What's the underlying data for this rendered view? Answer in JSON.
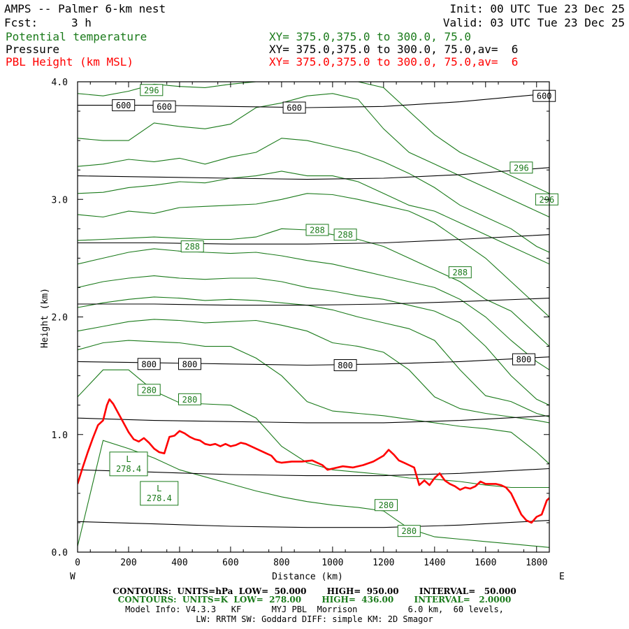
{
  "header": {
    "title": "AMPS -- Palmer 6-km nest",
    "fcst_label": "Fcst:",
    "fcst_value": "3 h",
    "init": "Init: 00 UTC Tue 23 Dec 25",
    "valid": "Valid: 03 UTC Tue 23 Dec 25",
    "fields": [
      {
        "name": "Potential temperature",
        "xy": "XY= 375.0,375.0 to 300.0, 75.0",
        "color": "#1a7a1a"
      },
      {
        "name": "Pressure",
        "xy": "XY= 375.0,375.0 to 300.0, 75.0,av=  6",
        "color": "#000000"
      },
      {
        "name": "PBL Height (km MSL)",
        "xy": "XY= 375.0,375.0 to 300.0, 75.0,av=  6",
        "color": "#ff0000"
      }
    ]
  },
  "chart_data": {
    "type": "line",
    "title": "AMPS -- Palmer 6-km nest",
    "xlabel": "Distance (km)",
    "ylabel": "Height (km)",
    "xlim": [
      0,
      1850
    ],
    "ylim": [
      0,
      4
    ],
    "x_ticks": [
      "0",
      "200",
      "400",
      "600",
      "800",
      "1000",
      "1200",
      "1400",
      "1600",
      "1800"
    ],
    "x_tick_values": [
      0,
      200,
      400,
      600,
      800,
      1000,
      1200,
      1400,
      1600,
      1800
    ],
    "y_ticks": [
      "0.0",
      "1.0",
      "2.0",
      "3.0",
      "4.0"
    ],
    "y_tick_values": [
      0,
      1,
      2,
      3,
      4
    ],
    "west_label": "W",
    "east_label": "E",
    "pbl_height": {
      "name": "PBL Height (km MSL)",
      "color": "#ff0000",
      "x": [
        0,
        20,
        40,
        60,
        80,
        100,
        115,
        125,
        140,
        160,
        180,
        200,
        220,
        240,
        260,
        280,
        300,
        320,
        340,
        360,
        380,
        400,
        420,
        440,
        460,
        480,
        500,
        520,
        540,
        560,
        580,
        600,
        620,
        640,
        660,
        680,
        700,
        720,
        740,
        760,
        780,
        800,
        840,
        880,
        920,
        960,
        980,
        1000,
        1040,
        1080,
        1120,
        1160,
        1200,
        1220,
        1240,
        1260,
        1280,
        1300,
        1320,
        1340,
        1360,
        1380,
        1400,
        1420,
        1440,
        1460,
        1480,
        1500,
        1520,
        1540,
        1560,
        1580,
        1600,
        1620,
        1640,
        1660,
        1680,
        1700,
        1720,
        1740,
        1760,
        1780,
        1800,
        1820,
        1840,
        1850
      ],
      "y": [
        0.58,
        0.72,
        0.85,
        0.97,
        1.08,
        1.12,
        1.25,
        1.3,
        1.26,
        1.18,
        1.1,
        1.02,
        0.96,
        0.94,
        0.97,
        0.93,
        0.88,
        0.85,
        0.84,
        0.98,
        0.99,
        1.03,
        1.01,
        0.98,
        0.96,
        0.95,
        0.92,
        0.91,
        0.92,
        0.9,
        0.92,
        0.9,
        0.91,
        0.93,
        0.92,
        0.9,
        0.88,
        0.86,
        0.84,
        0.82,
        0.77,
        0.76,
        0.77,
        0.77,
        0.78,
        0.74,
        0.7,
        0.71,
        0.73,
        0.72,
        0.74,
        0.77,
        0.82,
        0.87,
        0.83,
        0.78,
        0.76,
        0.74,
        0.72,
        0.57,
        0.61,
        0.57,
        0.63,
        0.67,
        0.61,
        0.58,
        0.56,
        0.53,
        0.55,
        0.54,
        0.56,
        0.6,
        0.58,
        0.58,
        0.58,
        0.57,
        0.55,
        0.5,
        0.41,
        0.32,
        0.27,
        0.25,
        0.3,
        0.32,
        0.44,
        0.46
      ]
    },
    "pressure": {
      "name": "Pressure",
      "units": "hPa",
      "color": "#000000",
      "x": [
        0,
        300,
        600,
        900,
        1200,
        1500,
        1850
      ],
      "levels": [
        {
          "label": "",
          "y": [
            0.26,
            0.24,
            0.22,
            0.21,
            0.21,
            0.23,
            0.27
          ]
        },
        {
          "label": "",
          "y": [
            0.7,
            0.68,
            0.66,
            0.65,
            0.65,
            0.67,
            0.71
          ]
        },
        {
          "label": "",
          "y": [
            1.14,
            1.12,
            1.11,
            1.1,
            1.1,
            1.12,
            1.16
          ]
        },
        {
          "label": "800",
          "y": [
            1.62,
            1.61,
            1.6,
            1.59,
            1.6,
            1.62,
            1.66
          ]
        },
        {
          "label": "",
          "y": [
            2.11,
            2.11,
            2.1,
            2.1,
            2.11,
            2.13,
            2.16
          ]
        },
        {
          "label": "",
          "y": [
            2.63,
            2.63,
            2.62,
            2.62,
            2.63,
            2.66,
            2.7
          ]
        },
        {
          "label": "",
          "y": [
            3.2,
            3.19,
            3.18,
            3.17,
            3.18,
            3.21,
            3.27
          ]
        },
        {
          "label": "600",
          "y": [
            3.8,
            3.8,
            3.79,
            3.78,
            3.79,
            3.83,
            3.9
          ]
        }
      ],
      "contour_labels": [
        {
          "text": "800",
          "x": 280,
          "y": 1.6
        },
        {
          "text": "800",
          "x": 440,
          "y": 1.6
        },
        {
          "text": "800",
          "x": 1050,
          "y": 1.59
        },
        {
          "text": "800",
          "x": 1750,
          "y": 1.64
        },
        {
          "text": "600",
          "x": 180,
          "y": 3.8
        },
        {
          "text": "600",
          "x": 340,
          "y": 3.79
        },
        {
          "text": "600",
          "x": 850,
          "y": 3.78
        },
        {
          "text": "600",
          "x": 1830,
          "y": 3.88
        }
      ]
    },
    "potential_temperature": {
      "name": "Potential temperature",
      "units": "K",
      "color": "#1a7a1a",
      "interval": 2,
      "x": [
        0,
        100,
        200,
        300,
        400,
        500,
        600,
        700,
        800,
        900,
        1000,
        1100,
        1200,
        1300,
        1400,
        1500,
        1600,
        1700,
        1800,
        1850
      ],
      "isentropes": [
        [
          0.05,
          0.95,
          0.88,
          0.8,
          0.7,
          0.64,
          0.58,
          0.52,
          0.47,
          0.43,
          0.4,
          0.38,
          0.35,
          0.2,
          0.13,
          0.11,
          0.09,
          0.07,
          0.05,
          0.04
        ],
        [
          1.32,
          1.55,
          1.55,
          1.37,
          1.27,
          1.26,
          1.25,
          1.14,
          0.9,
          0.76,
          0.7,
          0.68,
          0.66,
          0.63,
          0.62,
          0.6,
          0.57,
          0.55,
          0.55,
          0.55
        ],
        [
          1.72,
          1.78,
          1.8,
          1.79,
          1.78,
          1.75,
          1.75,
          1.65,
          1.5,
          1.28,
          1.2,
          1.18,
          1.16,
          1.13,
          1.1,
          1.07,
          1.05,
          1.02,
          0.85,
          0.75
        ],
        [
          1.88,
          1.92,
          1.96,
          1.98,
          1.97,
          1.95,
          1.96,
          1.97,
          1.93,
          1.88,
          1.78,
          1.75,
          1.7,
          1.55,
          1.32,
          1.22,
          1.18,
          1.15,
          1.12,
          1.1
        ],
        [
          2.08,
          2.12,
          2.15,
          2.17,
          2.16,
          2.14,
          2.15,
          2.14,
          2.12,
          2.1,
          2.06,
          2.0,
          1.95,
          1.9,
          1.8,
          1.55,
          1.33,
          1.28,
          1.18,
          1.15
        ],
        [
          2.25,
          2.3,
          2.33,
          2.35,
          2.33,
          2.32,
          2.33,
          2.33,
          2.3,
          2.25,
          2.22,
          2.18,
          2.15,
          2.1,
          2.05,
          1.95,
          1.75,
          1.5,
          1.3,
          1.25
        ],
        [
          2.45,
          2.5,
          2.55,
          2.58,
          2.56,
          2.55,
          2.54,
          2.55,
          2.52,
          2.48,
          2.45,
          2.4,
          2.35,
          2.3,
          2.25,
          2.15,
          2.0,
          1.8,
          1.62,
          1.55
        ],
        [
          2.65,
          2.66,
          2.67,
          2.68,
          2.67,
          2.66,
          2.66,
          2.68,
          2.75,
          2.74,
          2.7,
          2.66,
          2.6,
          2.5,
          2.4,
          2.3,
          2.15,
          2.05,
          1.85,
          1.75
        ],
        [
          2.87,
          2.85,
          2.9,
          2.88,
          2.93,
          2.94,
          2.95,
          2.96,
          3.0,
          3.05,
          3.04,
          3.0,
          2.95,
          2.9,
          2.8,
          2.65,
          2.5,
          2.3,
          2.1,
          2.0
        ],
        [
          3.05,
          3.06,
          3.1,
          3.12,
          3.15,
          3.14,
          3.18,
          3.2,
          3.24,
          3.2,
          3.2,
          3.15,
          3.05,
          2.95,
          2.9,
          2.8,
          2.7,
          2.6,
          2.5,
          2.45
        ],
        [
          3.28,
          3.3,
          3.34,
          3.32,
          3.35,
          3.3,
          3.36,
          3.4,
          3.52,
          3.5,
          3.45,
          3.4,
          3.32,
          3.22,
          3.1,
          2.95,
          2.85,
          2.75,
          2.6,
          2.55
        ],
        [
          3.52,
          3.5,
          3.5,
          3.65,
          3.62,
          3.6,
          3.64,
          3.78,
          3.82,
          3.88,
          3.9,
          3.85,
          3.6,
          3.4,
          3.3,
          3.2,
          3.1,
          3.0,
          2.9,
          2.85
        ],
        [
          3.9,
          3.88,
          3.92,
          3.98,
          3.96,
          3.95,
          3.98,
          4.0,
          4.0,
          4.0,
          4.0,
          4.0,
          3.95,
          3.75,
          3.55,
          3.4,
          3.3,
          3.2,
          3.1,
          3.05
        ]
      ],
      "contour_labels": [
        {
          "text": "280",
          "x": 280,
          "y": 1.38
        },
        {
          "text": "280",
          "x": 440,
          "y": 1.3
        },
        {
          "text": "280",
          "x": 1210,
          "y": 0.4
        },
        {
          "text": "280",
          "x": 1300,
          "y": 0.18
        },
        {
          "text": "288",
          "x": 450,
          "y": 2.6
        },
        {
          "text": "288",
          "x": 940,
          "y": 2.74
        },
        {
          "text": "288",
          "x": 1050,
          "y": 2.7
        },
        {
          "text": "288",
          "x": 1500,
          "y": 2.38
        },
        {
          "text": "296",
          "x": 290,
          "y": 3.93
        },
        {
          "text": "296",
          "x": 1740,
          "y": 3.27
        },
        {
          "text": "296",
          "x": 1840,
          "y": 3.0
        }
      ],
      "lows": [
        {
          "letter": "L",
          "value": "278.4",
          "x": 200,
          "y": 0.75
        },
        {
          "letter": "L",
          "value": "278.4",
          "x": 320,
          "y": 0.5
        }
      ]
    }
  },
  "footer": {
    "pressure_contours": "CONTOURS:  UNITS=hPa  LOW=  50.000       HIGH=  950.00       INTERVAL=   50.000",
    "theta_contours": "CONTOURS:  UNITS=K  LOW=  278.00       HIGH=  436.00       INTERVAL=   2.0000",
    "model_info_1": "Model Info: V4.3.3   KF      MYJ PBL  Morrison          6.0 km,  60 levels,",
    "model_info_2": "LW: RRTM SW: Goddard DIFF: simple KM: 2D Smagor"
  }
}
